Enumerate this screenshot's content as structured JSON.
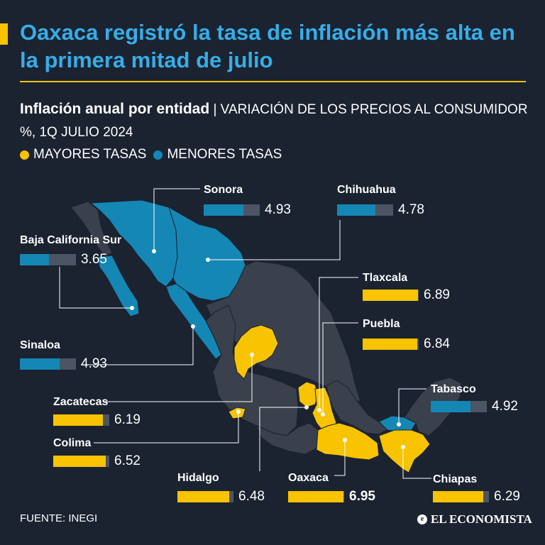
{
  "header": {
    "title": "Oaxaca registró la tasa de inflación más alta en la primera mitad de julio",
    "subtitle_bold": "Inflación anual por entidad",
    "subtitle_rest": "| VARIACIÓN DE LOS PRECIOS AL CONSUMIDOR %, 1Q JULIO 2024"
  },
  "legend": {
    "high": "MAYORES TASAS",
    "low": "MENORES TASAS"
  },
  "colors": {
    "high": "#f8c300",
    "low": "#1487b5",
    "title": "#35aee8",
    "base_state": "#3a404c",
    "bar_track": "#4b5563"
  },
  "chart_data": {
    "type": "bar",
    "title": "Inflación anual por entidad",
    "unit": "Variación de los precios al consumidor %, 1Q julio 2024",
    "scale_max": 7,
    "series": [
      {
        "name": "Sonora",
        "value": 4.93,
        "label": "4.93",
        "group": "low"
      },
      {
        "name": "Chihuahua",
        "value": 4.78,
        "label": "4.78",
        "group": "low"
      },
      {
        "name": "Baja California Sur",
        "value": 3.65,
        "label": "3.65",
        "group": "low"
      },
      {
        "name": "Tlaxcala",
        "value": 6.89,
        "label": "6.89",
        "group": "high"
      },
      {
        "name": "Puebla",
        "value": 6.84,
        "label": "6.84",
        "group": "high"
      },
      {
        "name": "Sinaloa",
        "value": 4.93,
        "label": "4.93",
        "group": "low"
      },
      {
        "name": "Tabasco",
        "value": 4.92,
        "label": "4.92",
        "group": "low"
      },
      {
        "name": "Zacatecas",
        "value": 6.19,
        "label": "6.19",
        "group": "high"
      },
      {
        "name": "Colima",
        "value": 6.52,
        "label": "6.52",
        "group": "high"
      },
      {
        "name": "Hidalgo",
        "value": 6.48,
        "label": "6.48",
        "group": "high"
      },
      {
        "name": "Oaxaca",
        "value": 6.95,
        "label": "6.95",
        "group": "high"
      },
      {
        "name": "Chiapas",
        "value": 6.29,
        "label": "6.29",
        "group": "high"
      }
    ]
  },
  "footer": {
    "source": "FUENTE: INEGI",
    "brand": "EL ECONOMISTA"
  }
}
